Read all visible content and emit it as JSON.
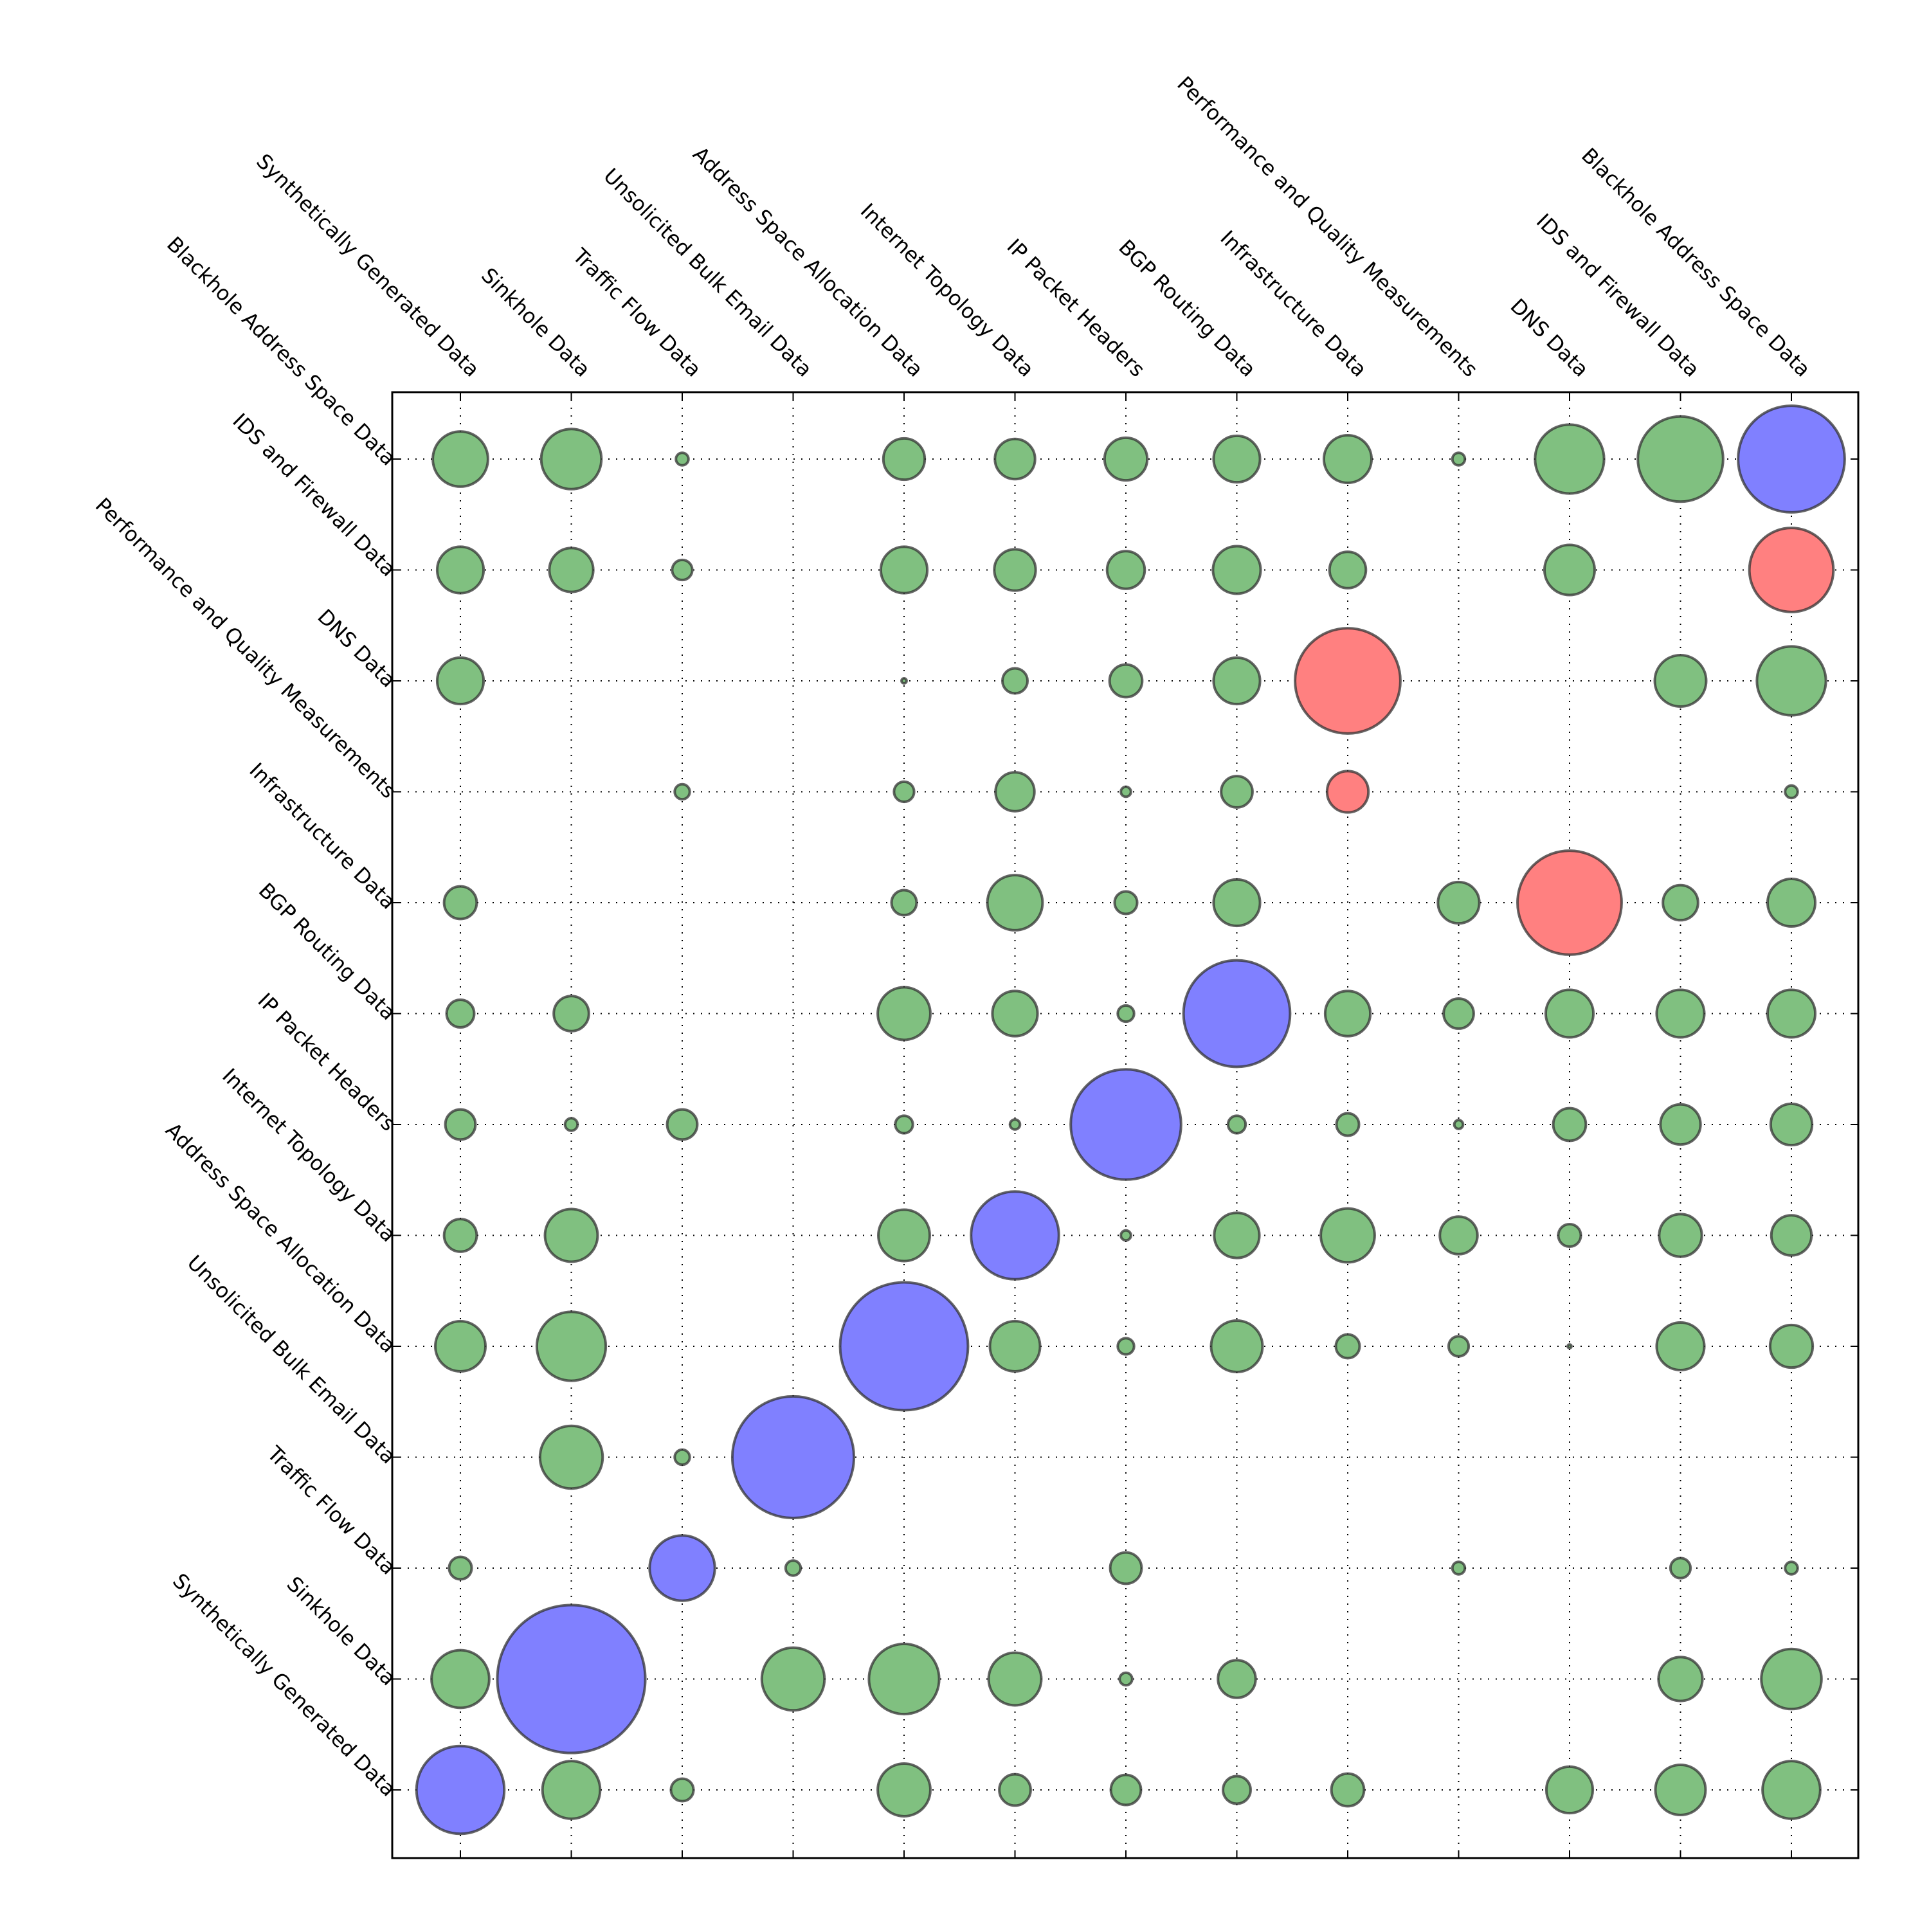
{
  "chart_data": {
    "type": "scatter",
    "title": "",
    "xlabel": "",
    "ylabel": "",
    "grid": true,
    "x_categories": [
      "Synthetically Generated Data",
      "Sinkhole Data",
      "Traffic Flow Data",
      "Unsolicited Bulk Email Data",
      "Address Space Allocation Data",
      "Internet Topology Data",
      "IP Packet Headers",
      "BGP Routing Data",
      "Infrastructure Data",
      "Performance and Quality Measurements",
      "DNS Data",
      "IDS and Firewall Data",
      "Blackhole Address Space Data"
    ],
    "y_categories": [
      "Synthetically Generated Data",
      "Sinkhole Data",
      "Traffic Flow Data",
      "Unsolicited Bulk Email Data",
      "Address Space Allocation Data",
      "Internet Topology Data",
      "IP Packet Headers",
      "BGP Routing Data",
      "Infrastructure Data",
      "Performance and Quality Measurements",
      "DNS Data",
      "IDS and Firewall Data",
      "Blackhole Address Space Data"
    ],
    "colors": {
      "diagonal": "#8080ff",
      "highlight": "#ff8080",
      "other": "#80c080"
    },
    "size_unit": "relative bubble diameter",
    "points": [
      {
        "x": 0,
        "y": 0,
        "size": 70,
        "color": "diagonal"
      },
      {
        "x": 1,
        "y": 0,
        "size": 46
      },
      {
        "x": 2,
        "y": 0,
        "size": 18
      },
      {
        "x": 4,
        "y": 0,
        "size": 42
      },
      {
        "x": 5,
        "y": 0,
        "size": 25
      },
      {
        "x": 6,
        "y": 0,
        "size": 24
      },
      {
        "x": 7,
        "y": 0,
        "size": 22
      },
      {
        "x": 8,
        "y": 0,
        "size": 26
      },
      {
        "x": 10,
        "y": 0,
        "size": 37
      },
      {
        "x": 11,
        "y": 0,
        "size": 40
      },
      {
        "x": 12,
        "y": 0,
        "size": 46
      },
      {
        "x": 0,
        "y": 1,
        "size": 46
      },
      {
        "x": 1,
        "y": 1,
        "size": 118,
        "color": "diagonal"
      },
      {
        "x": 3,
        "y": 1,
        "size": 50
      },
      {
        "x": 4,
        "y": 1,
        "size": 56
      },
      {
        "x": 5,
        "y": 1,
        "size": 42
      },
      {
        "x": 6,
        "y": 1,
        "size": 10
      },
      {
        "x": 7,
        "y": 1,
        "size": 30
      },
      {
        "x": 11,
        "y": 1,
        "size": 35
      },
      {
        "x": 12,
        "y": 1,
        "size": 48
      },
      {
        "x": 0,
        "y": 2,
        "size": 18
      },
      {
        "x": 2,
        "y": 2,
        "size": 52,
        "color": "diagonal"
      },
      {
        "x": 3,
        "y": 2,
        "size": 12
      },
      {
        "x": 6,
        "y": 2,
        "size": 25
      },
      {
        "x": 9,
        "y": 2,
        "size": 10
      },
      {
        "x": 11,
        "y": 2,
        "size": 16
      },
      {
        "x": 12,
        "y": 2,
        "size": 10
      },
      {
        "x": 1,
        "y": 3,
        "size": 50
      },
      {
        "x": 2,
        "y": 3,
        "size": 12
      },
      {
        "x": 3,
        "y": 3,
        "size": 97,
        "color": "diagonal"
      },
      {
        "x": 0,
        "y": 4,
        "size": 40
      },
      {
        "x": 1,
        "y": 4,
        "size": 55
      },
      {
        "x": 4,
        "y": 4,
        "size": 102,
        "color": "diagonal"
      },
      {
        "x": 5,
        "y": 4,
        "size": 40
      },
      {
        "x": 6,
        "y": 4,
        "size": 13
      },
      {
        "x": 7,
        "y": 4,
        "size": 41
      },
      {
        "x": 8,
        "y": 4,
        "size": 19
      },
      {
        "x": 9,
        "y": 4,
        "size": 16
      },
      {
        "x": 10,
        "y": 4,
        "size": 3
      },
      {
        "x": 11,
        "y": 4,
        "size": 38
      },
      {
        "x": 12,
        "y": 4,
        "size": 34
      },
      {
        "x": 0,
        "y": 5,
        "size": 26
      },
      {
        "x": 1,
        "y": 5,
        "size": 42
      },
      {
        "x": 4,
        "y": 5,
        "size": 41
      },
      {
        "x": 5,
        "y": 5,
        "size": 70,
        "color": "diagonal"
      },
      {
        "x": 6,
        "y": 5,
        "size": 8
      },
      {
        "x": 7,
        "y": 5,
        "size": 36
      },
      {
        "x": 8,
        "y": 5,
        "size": 43
      },
      {
        "x": 9,
        "y": 5,
        "size": 30
      },
      {
        "x": 10,
        "y": 5,
        "size": 18
      },
      {
        "x": 11,
        "y": 5,
        "size": 34
      },
      {
        "x": 12,
        "y": 5,
        "size": 32
      },
      {
        "x": 0,
        "y": 6,
        "size": 24
      },
      {
        "x": 1,
        "y": 6,
        "size": 10
      },
      {
        "x": 2,
        "y": 6,
        "size": 24
      },
      {
        "x": 4,
        "y": 6,
        "size": 14
      },
      {
        "x": 5,
        "y": 6,
        "size": 8
      },
      {
        "x": 6,
        "y": 6,
        "size": 88,
        "color": "diagonal"
      },
      {
        "x": 7,
        "y": 6,
        "size": 14
      },
      {
        "x": 8,
        "y": 6,
        "size": 18
      },
      {
        "x": 9,
        "y": 6,
        "size": 7
      },
      {
        "x": 10,
        "y": 6,
        "size": 26
      },
      {
        "x": 11,
        "y": 6,
        "size": 32
      },
      {
        "x": 12,
        "y": 6,
        "size": 33
      },
      {
        "x": 0,
        "y": 7,
        "size": 22
      },
      {
        "x": 1,
        "y": 7,
        "size": 28
      },
      {
        "x": 4,
        "y": 7,
        "size": 42
      },
      {
        "x": 5,
        "y": 7,
        "size": 36
      },
      {
        "x": 6,
        "y": 7,
        "size": 13
      },
      {
        "x": 7,
        "y": 7,
        "size": 85,
        "color": "diagonal"
      },
      {
        "x": 8,
        "y": 7,
        "size": 36
      },
      {
        "x": 9,
        "y": 7,
        "size": 24
      },
      {
        "x": 10,
        "y": 7,
        "size": 38
      },
      {
        "x": 11,
        "y": 7,
        "size": 38
      },
      {
        "x": 12,
        "y": 7,
        "size": 38
      },
      {
        "x": 0,
        "y": 8,
        "size": 26
      },
      {
        "x": 4,
        "y": 8,
        "size": 20
      },
      {
        "x": 5,
        "y": 8,
        "size": 44
      },
      {
        "x": 6,
        "y": 8,
        "size": 18
      },
      {
        "x": 7,
        "y": 8,
        "size": 37
      },
      {
        "x": 9,
        "y": 8,
        "size": 33
      },
      {
        "x": 10,
        "y": 8,
        "size": 83,
        "color": "highlight"
      },
      {
        "x": 11,
        "y": 8,
        "size": 28
      },
      {
        "x": 12,
        "y": 8,
        "size": 38
      },
      {
        "x": 2,
        "y": 9,
        "size": 12
      },
      {
        "x": 4,
        "y": 9,
        "size": 16
      },
      {
        "x": 5,
        "y": 9,
        "size": 31
      },
      {
        "x": 6,
        "y": 9,
        "size": 8
      },
      {
        "x": 7,
        "y": 9,
        "size": 25
      },
      {
        "x": 8,
        "y": 9,
        "size": 33,
        "color": "highlight"
      },
      {
        "x": 12,
        "y": 9,
        "size": 10
      },
      {
        "x": 0,
        "y": 10,
        "size": 37
      },
      {
        "x": 4,
        "y": 10,
        "size": 4
      },
      {
        "x": 5,
        "y": 10,
        "size": 20
      },
      {
        "x": 6,
        "y": 10,
        "size": 26
      },
      {
        "x": 7,
        "y": 10,
        "size": 37
      },
      {
        "x": 8,
        "y": 10,
        "size": 84,
        "color": "highlight"
      },
      {
        "x": 11,
        "y": 10,
        "size": 41
      },
      {
        "x": 12,
        "y": 10,
        "size": 55
      },
      {
        "x": 0,
        "y": 11,
        "size": 37
      },
      {
        "x": 1,
        "y": 11,
        "size": 35
      },
      {
        "x": 2,
        "y": 11,
        "size": 16
      },
      {
        "x": 4,
        "y": 11,
        "size": 37
      },
      {
        "x": 5,
        "y": 11,
        "size": 33
      },
      {
        "x": 6,
        "y": 11,
        "size": 30
      },
      {
        "x": 7,
        "y": 11,
        "size": 38
      },
      {
        "x": 8,
        "y": 11,
        "size": 29
      },
      {
        "x": 10,
        "y": 11,
        "size": 40
      },
      {
        "x": 12,
        "y": 11,
        "size": 67,
        "color": "highlight"
      },
      {
        "x": 0,
        "y": 12,
        "size": 44
      },
      {
        "x": 1,
        "y": 12,
        "size": 48
      },
      {
        "x": 2,
        "y": 12,
        "size": 10
      },
      {
        "x": 4,
        "y": 12,
        "size": 33
      },
      {
        "x": 5,
        "y": 12,
        "size": 32
      },
      {
        "x": 6,
        "y": 12,
        "size": 34
      },
      {
        "x": 7,
        "y": 12,
        "size": 37
      },
      {
        "x": 8,
        "y": 12,
        "size": 38
      },
      {
        "x": 9,
        "y": 12,
        "size": 10
      },
      {
        "x": 10,
        "y": 12,
        "size": 55
      },
      {
        "x": 11,
        "y": 12,
        "size": 68
      },
      {
        "x": 12,
        "y": 12,
        "size": 85,
        "color": "diagonal"
      }
    ]
  }
}
